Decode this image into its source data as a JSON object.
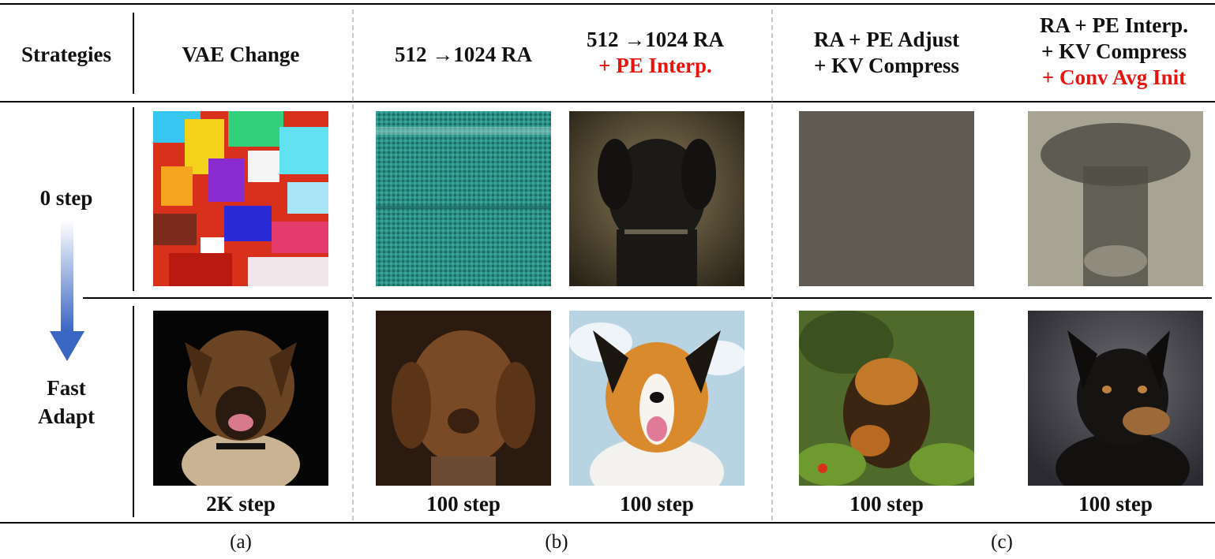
{
  "header": {
    "strategies": "Strategies",
    "col_vae": "VAE Change",
    "col_ra": "512 →1024 RA",
    "col_ra_pe_line1": "512 →1024 RA",
    "col_ra_pe_line2": "+ PE Interp.",
    "col_adjust_line1": "RA + PE Adjust",
    "col_adjust_line2": "+ KV Compress",
    "col_full_line1": "RA + PE Interp.",
    "col_full_line2": "+ KV Compress",
    "col_full_line3": "+ Conv Avg Init"
  },
  "rows": {
    "row0_label": "0 step",
    "row1_label_line1": "Fast",
    "row1_label_line2": "Adapt"
  },
  "footer_steps": [
    "2K step",
    "100 step",
    "100 step",
    "100 step",
    "100 step"
  ],
  "groups": [
    "(a)",
    "(b)",
    "(c)"
  ],
  "colors": {
    "highlight": "#e8140f",
    "arrow_top": "#ffffff",
    "arrow_bottom": "#3a66c4"
  }
}
